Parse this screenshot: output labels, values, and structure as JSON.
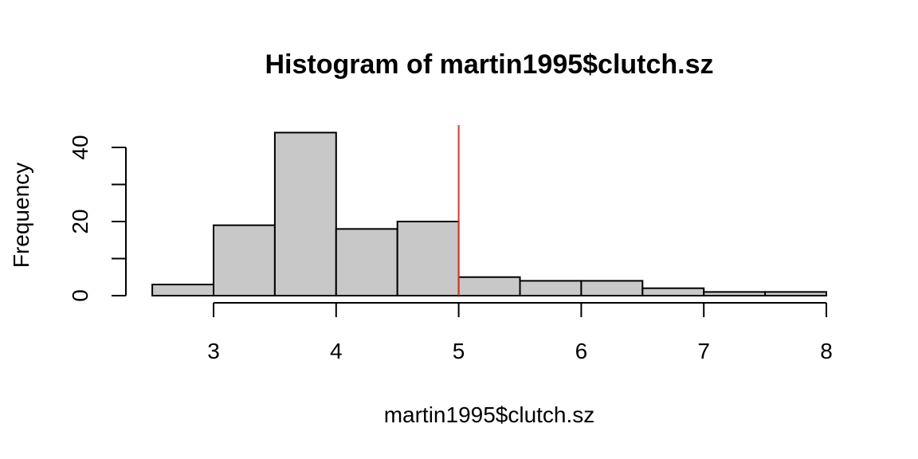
{
  "chart_data": {
    "type": "bar",
    "title": "Histogram of martin1995$clutch.sz",
    "xlabel": "martin1995$clutch.sz",
    "ylabel": "Frequency",
    "bins": [
      {
        "start": 2.5,
        "end": 3.0,
        "count": 3
      },
      {
        "start": 3.0,
        "end": 3.5,
        "count": 19
      },
      {
        "start": 3.5,
        "end": 4.0,
        "count": 44
      },
      {
        "start": 4.0,
        "end": 4.5,
        "count": 18
      },
      {
        "start": 4.5,
        "end": 5.0,
        "count": 20
      },
      {
        "start": 5.0,
        "end": 5.5,
        "count": 5
      },
      {
        "start": 5.5,
        "end": 6.0,
        "count": 4
      },
      {
        "start": 6.0,
        "end": 6.5,
        "count": 4
      },
      {
        "start": 6.5,
        "end": 7.0,
        "count": 2
      },
      {
        "start": 7.0,
        "end": 7.5,
        "count": 1
      },
      {
        "start": 7.5,
        "end": 8.0,
        "count": 1
      }
    ],
    "xlim": [
      2.5,
      8
    ],
    "ylim": [
      0,
      46
    ],
    "x_ticks": [
      3,
      4,
      5,
      6,
      7,
      8
    ],
    "y_ticks": [
      0,
      10,
      20,
      30,
      40
    ],
    "y_tick_labels": [
      0,
      20,
      40
    ],
    "vline": {
      "x": 5,
      "color": "#e8302a"
    },
    "bar_color": "#c8c8c8",
    "grid": false,
    "legend": "none"
  }
}
